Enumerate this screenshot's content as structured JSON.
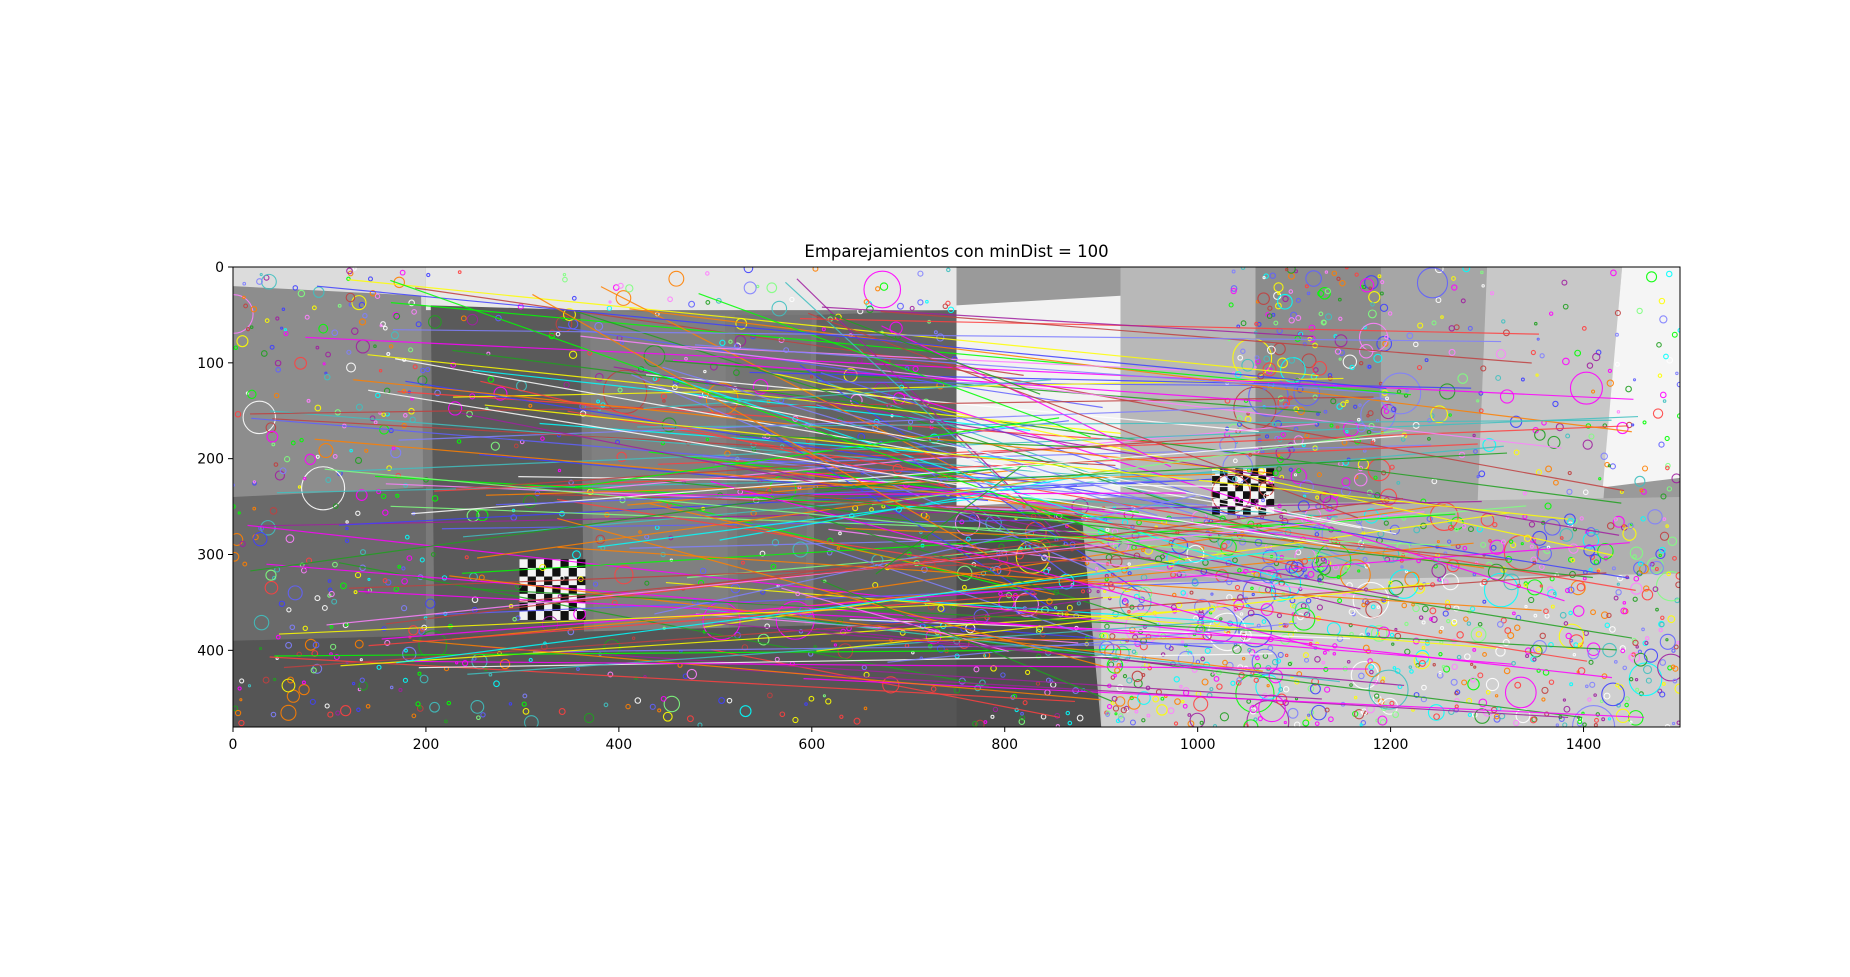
{
  "chart_data": {
    "type": "image",
    "title": "Emparejamientos con minDist = 100",
    "xlabel": "",
    "ylabel": "",
    "xlim": [
      0,
      1500
    ],
    "ylim": [
      480,
      0
    ],
    "xticks": [
      0,
      200,
      400,
      600,
      800,
      1000,
      1200,
      1400
    ],
    "yticks": [
      0,
      100,
      200,
      300,
      400
    ],
    "image_size": [
      1500,
      480
    ],
    "grid": false,
    "content": "two side-by-side grayscale frames (each 750 px wide) with colored keypoint circles and match lines between them"
  }
}
